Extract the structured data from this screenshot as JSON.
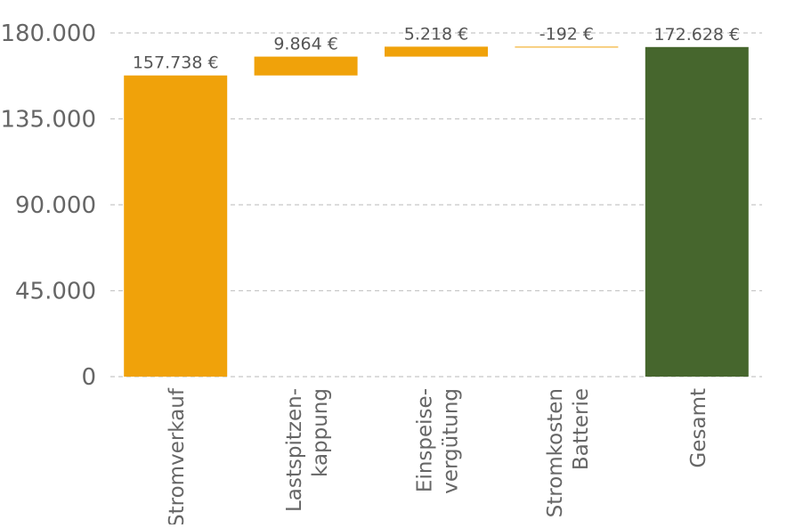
{
  "chart_data": {
    "type": "waterfall",
    "title": "",
    "xlabel": "",
    "ylabel": "",
    "ylim": [
      0,
      180000
    ],
    "yticks": [
      0,
      45000,
      90000,
      135000,
      180000
    ],
    "ytick_labels": [
      "0",
      "45.000",
      "90.000",
      "135.000",
      "180.000"
    ],
    "grid": true,
    "categories": [
      [
        "Stromverkauf"
      ],
      [
        "Lastspitzen-",
        "kappung"
      ],
      [
        "Einspeise-",
        "vergütung"
      ],
      [
        "Stromkosten",
        "Batterie"
      ],
      [
        "Gesamt"
      ]
    ],
    "steps": [
      {
        "kind": "total",
        "start": 0,
        "end": 157738,
        "label": "157.738 €"
      },
      {
        "kind": "delta",
        "start": 157738,
        "end": 167602,
        "label": "9.864 €"
      },
      {
        "kind": "delta",
        "start": 167602,
        "end": 172820,
        "label": "5.218 €"
      },
      {
        "kind": "delta",
        "start": 172820,
        "end": 172628,
        "label": "-192 €"
      },
      {
        "kind": "total",
        "start": 0,
        "end": 172628,
        "label": "172.628 €"
      }
    ],
    "colors": {
      "step": "#F0A20A",
      "total": "#46662D",
      "grid": "#C8C8C8",
      "text": "#555555",
      "tick": "#666666"
    }
  }
}
